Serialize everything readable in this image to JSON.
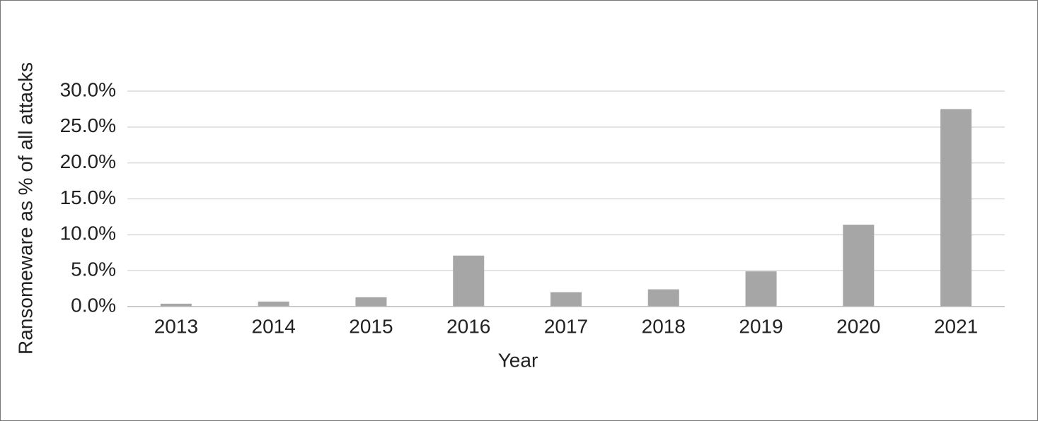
{
  "chart_data": {
    "type": "bar",
    "x_label": "Year",
    "y_label": "Ransomeware as % of all attacks",
    "categories": [
      "2013",
      "2014",
      "2015",
      "2016",
      "2017",
      "2018",
      "2019",
      "2020",
      "2021"
    ],
    "values": [
      0.4,
      0.7,
      1.3,
      7.1,
      2.0,
      2.4,
      4.9,
      11.4,
      27.5
    ],
    "color": "#a6a6a6",
    "ylim": [
      0,
      30
    ],
    "yticks": [
      {
        "value": 0,
        "label": "0.0%"
      },
      {
        "value": 5,
        "label": "5.0%"
      },
      {
        "value": 10,
        "label": "10.0%"
      },
      {
        "value": 15,
        "label": "15.0%"
      },
      {
        "value": 20,
        "label": "20.0%"
      },
      {
        "value": 25,
        "label": "25.0%"
      },
      {
        "value": 30,
        "label": "30.0%"
      }
    ],
    "grid": true
  }
}
